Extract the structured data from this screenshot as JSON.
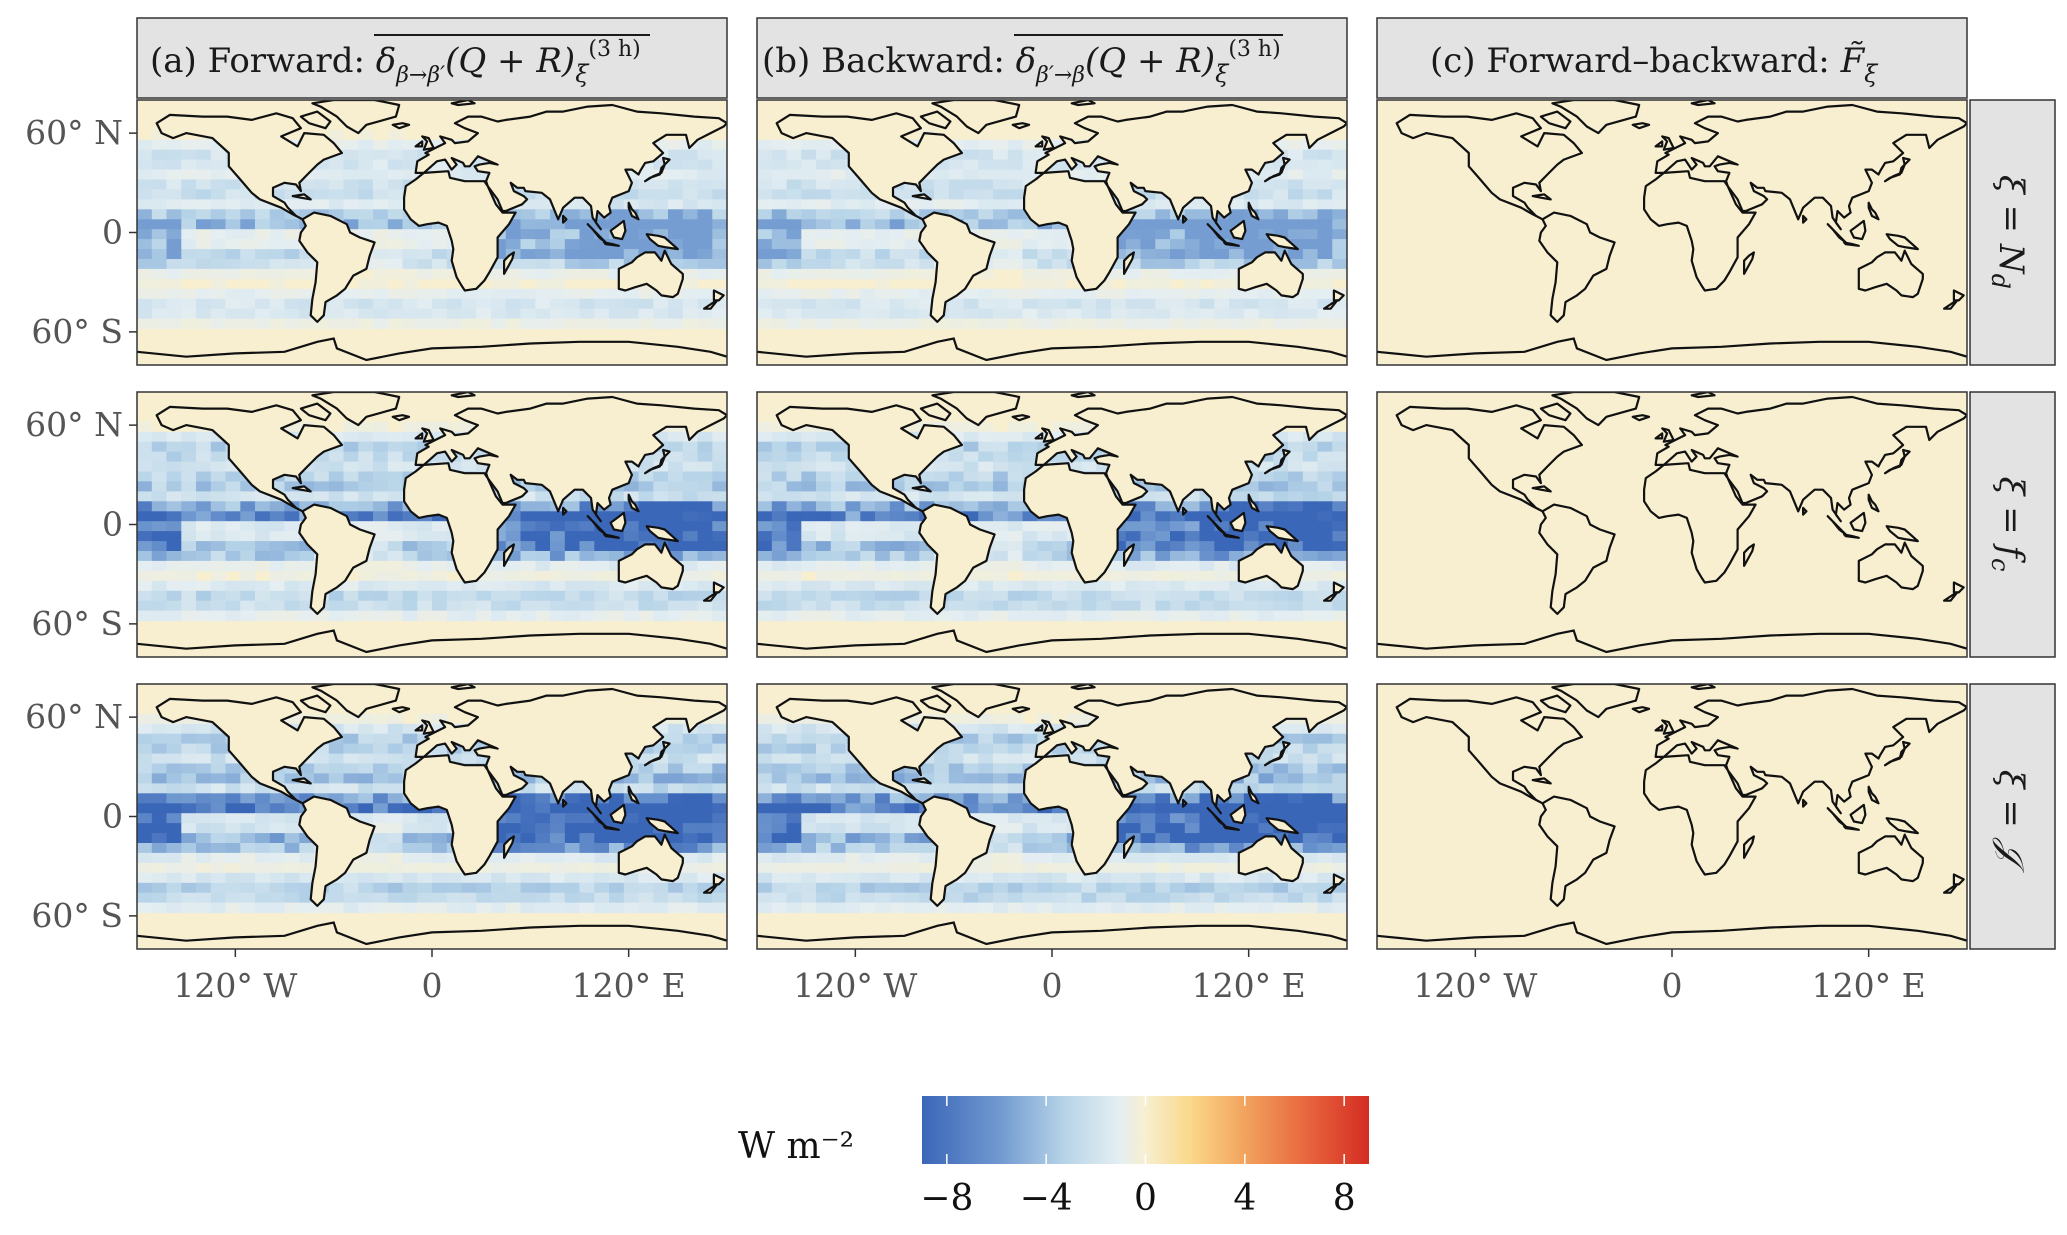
{
  "chart_data": {
    "type": "heatmap",
    "description_of_values": "Gridded maps of radiative/heating flux differences",
    "colorbar": {
      "title": "W m⁻²",
      "range": [
        -9,
        9
      ],
      "ticks": [
        -8,
        -4,
        0,
        4,
        8
      ],
      "tick_labels": [
        "−8",
        "−4",
        "0",
        "4",
        "8"
      ],
      "colors": [
        "#3a66b8",
        "#6f98cf",
        "#b7d4e8",
        "#e4eef2",
        "#f7efd0",
        "#fbd88a",
        "#f2a45e",
        "#e8663f",
        "#d42d22"
      ]
    },
    "columns": [
      {
        "id": "a",
        "label": "(a) Forward: δβ→β′(Q + R)ξ (3 h)"
      },
      {
        "id": "b",
        "label": "(b) Backward: δβ′→β(Q + R)ξ (3 h)"
      },
      {
        "id": "c",
        "label": "(c) Forward–backward: F̃ξ"
      }
    ],
    "rows": [
      {
        "id": "Nd",
        "label": "ξ = Nd",
        "forward_intensity": 0.55,
        "residual_intensity": 0.0
      },
      {
        "id": "fc",
        "label": "ξ = fc",
        "forward_intensity": 0.85,
        "residual_intensity": 0.03
      },
      {
        "id": "J",
        "label": "ξ = 𝒥",
        "forward_intensity": 0.95,
        "residual_intensity": 0.02
      }
    ],
    "x_axis": {
      "ticks": [
        -120,
        0,
        120
      ],
      "tick_labels": [
        "120° W",
        "0",
        "120° E"
      ],
      "range": [
        -180,
        180
      ]
    },
    "y_axis": {
      "ticks": [
        60,
        0,
        -60
      ],
      "tick_labels": [
        "60° N",
        "0",
        "60° S"
      ],
      "range": [
        -80,
        80
      ]
    }
  },
  "strip_labels": {
    "a_prefix": "(a) Forward: ",
    "a_math": "δ",
    "a_sub": "β→β′",
    "a_rest": "(Q + R)",
    "a_xi": "ξ",
    "a_sup": "(3 h)",
    "b_prefix": "(b) Backward: ",
    "b_math": "δ",
    "b_sub": "β′→β",
    "b_rest": "(Q + R)",
    "b_xi": "ξ",
    "b_sup": "(3 h)",
    "c_prefix": "(c) Forward–backward: ",
    "c_F": "F̃",
    "c_xi": "ξ",
    "r1_a": "ξ = N",
    "r1_b": "d",
    "r2_a": "ξ = f",
    "r2_b": "c",
    "r3": "ξ = 𝒥"
  }
}
